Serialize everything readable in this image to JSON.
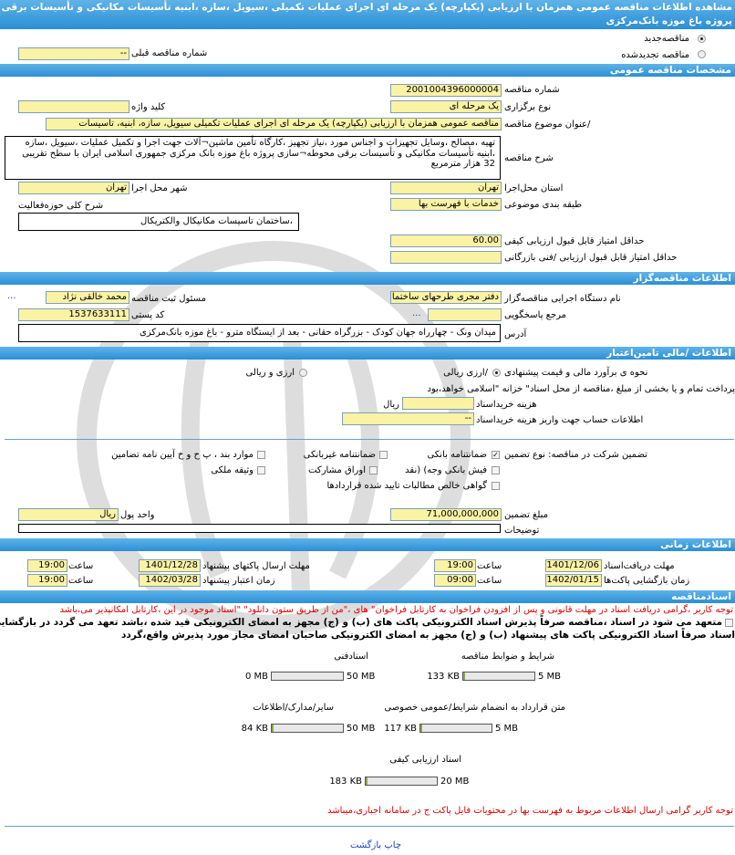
{
  "title": {
    "line1": "مشاهده اطلاعات مناقصه  عمومی  همزمان با ارزیابی  (یکپارچه) یک مرحله ای اجرای عملیات تکمیلی ،سیویل ،سازه ،ابنیه تأسیسات مکانیکی و تأسیسات برقی محوطه¬سازی",
    "line2": "پروژه باغ موزه بانک‌مرکزی"
  },
  "tender_kind": {
    "new_label": "مناقصه‌جدید",
    "new_selected": true,
    "renewed_label": "مناقصه تجدیدشده",
    "renewed_selected": false,
    "prev_number_label": "شماره  مناقصه قبلی",
    "prev_number_value": "--"
  },
  "general": {
    "header": "مشخصات مناقصه عمومی",
    "number_label": "شماره مناقصه",
    "number_value": "2001004396000004",
    "type_label": "نوع برگزاری",
    "type_value": "یک مرحله ای",
    "keyword_label": "کلید واژه",
    "keyword_value": "",
    "subject_label": "/عنوان  موضوع مناقصه",
    "subject_value": "مناقصه عمومی همزمان با ارزیابی (یکپارچه) یک مرحله ای اجرای عملیات تکمیلی سیویل، سازه، ابنیه، تأسیسات",
    "description_label": "شرح مناقصه",
    "description_value": "تهیه  ،مصالح ،وسایل تجهیزات و اجناس مورد ،نیاز تجهیز ،کارگاه تأمین  ماشین¬آلات جهت اجرا و تکمیل عملیات ،سیویل ،سازه ،ابنیه تأسیسات مکانیکی و تأسیسات برقی  محوطه¬سازی پروژه باغ موزه بانک مرکزی  جمهوری اسلامی ایران با سطح  تقریبی 32 هزار  مترمربع",
    "province_label": "استان محل‌اجرا",
    "province_value": "تهران",
    "city_label": "شهر محل اجرا",
    "city_value": "تهران",
    "category_label": "طبقه بندی موضوعی",
    "category_value": "خدمات با فهرست بها",
    "activity_label": "شرح  کلی  حوزه‌فعالیت",
    "activity_value": "،ساختمان  تاسیسات  مکانیکال والکتریکال",
    "min_quality_label": "حداقل  امتیاز قابل قبول  ارزیابی کیفی",
    "min_quality_value": "60.00",
    "min_commercial_label": "حداقل  امتیاز قابل قبول  ارزیابی /فنی بازرگانی",
    "min_commercial_value": ""
  },
  "organizer": {
    "header": "اطلاعات مناقصه‌گزار",
    "org_label": "نام دستگاه اجرایی  مناقصه‌گزار",
    "org_value": "دفتر مجری طرحهای ساختمانی",
    "responsible_label": "مسئول ثبت مناقصه",
    "responsible_value": "محمد خالقی نژاد",
    "more": "...",
    "referee_label": "مرجع پاسخگویی",
    "referee_value": "",
    "postal_label": "کد  پستی",
    "postal_value": "1537633111",
    "address_label": "آدرس",
    "address_value": "میدان ونک - چهارراه جهان کودک - بزرگراه حقانی - بعد از ایستگاه مترو - باغ موزه بانک‌مرکزی"
  },
  "finance": {
    "header": "اطلاعات /مالی تامین‌اعتبار",
    "estimate_label": "نحوه ی برآورد مالی و قیمت پیشنهادی",
    "opt_rial": "/ارزی ریالی",
    "opt_rial_selected": true,
    "opt_fx": "ارزی و ریالی",
    "opt_fx_selected": false,
    "treasury_note": "پرداخت تمام و یا بخشی از مبلغ ،مناقصه از محل اسناد\" خزانه \"اسلامی خواهد،بود",
    "doc_cost_label": "هزینه خریداسناد",
    "doc_cost_value": "",
    "doc_cost_unit": "ریال",
    "account_label": "اطلاعات حساب جهت واریز هزینه خریداسناد",
    "account_value": "--",
    "guarantee_label": "تضمین شرکت در مناقصه:   نوع    تضمین",
    "guarantees": [
      {
        "label": "ضمانتنامه  بانکی",
        "checked": true
      },
      {
        "label": "ضمانتنامه  غیربانکی",
        "checked": false
      },
      {
        "label": "موارد  بند ، پ ح و خ آیین نامه تضامین",
        "checked": false
      },
      {
        "label": "فیش  بانکی وجه) (نقد",
        "checked": false
      },
      {
        "label": "اوراق  مشارکت",
        "checked": false
      },
      {
        "label": "وثیقه ملکی",
        "checked": false
      },
      {
        "label": "گواهی  خالص مطالبات تایید شده قراردادها",
        "checked": false
      }
    ],
    "amount_label": "مبلغ تضمین",
    "amount_value": "71,000,000,000",
    "currency_label": "واحد پول",
    "currency_value": "ریال",
    "notes_label": "توضیحات",
    "notes_value": ""
  },
  "timing": {
    "header": "اطلاعات زمانی",
    "receive_label": "مهلت  دریافت‌اسناد",
    "receive_date": "1401/12/06",
    "receive_time": "19:00",
    "submit_label": "مهلت     ارسال  پاکتهای پیشنهاد",
    "submit_date": "1401/12/28",
    "submit_time": "19:00",
    "open_label": "زمان  بازگشایی پاکت‌ها",
    "open_date": "1402/01/15",
    "open_time": "09:00",
    "validity_label": "زمان      اعتبار پیشنهاد",
    "validity_date": "1402/03/28",
    "validity_time": "19:00",
    "time_label": "ساعت"
  },
  "documents": {
    "header": "اسنادمناقصه",
    "notice": "توجه کاربر ،گرامی دریافت اسناد در مهلت قانونی و پس از افزودن فراخوان به کارتابل فراخوان\" های ،\"من از طریق ستون دانلود\" \"اسناد موجود در این ،کارتابل امکانپذیر می،باشد",
    "commit_line1": "متعهد می شود در اسناد ،مناقصه صرفاً پذیرش اسناد الکترونیکی پاکت های (ب) و (ج) مجهز به امضای الکترونیکی قید شده ،باشد تعهد می گردد در بازگشایی وپذیرش",
    "commit_line2": "اسناد صرفاً اسناد الکترونیکی پاکت های پیشنهاد (ب) و (ج) مجهز به امضای الکترونیکی صاحبان امضای مجاز مورد پذیرش واقع،گردد",
    "files": [
      {
        "label": "شرایط و  ضوابط مناقصه",
        "size": "133 KB",
        "max": "5 MB",
        "fill": 0.026
      },
      {
        "label": "اسنادفنی",
        "size": "0 MB",
        "max": "50 MB",
        "fill": 0
      },
      {
        "label": "متن قرارداد به  انضمام شرایط/عمومی  خصوصی",
        "size": "117 KB",
        "max": "5 MB",
        "fill": 0.023
      },
      {
        "label": "سایر/مدارک/اطلاعات",
        "size": "84 KB",
        "max": "50 MB",
        "fill": 0.002
      },
      {
        "label": "اسناد  ارزیابی کیفی",
        "size": "183 KB",
        "max": "20 MB",
        "fill": 0.009
      }
    ],
    "notice2": "توجه کاربر گرامی ارسال اطلاعات مربوط به فهرست بها در محتویات فایل پاکت ج در سامانه  اجباری،میباشد"
  },
  "footer": {
    "print": "چاپ",
    "back": "بازگشت"
  },
  "colors": {
    "header": "#2b8fd6",
    "input": "#fbf3a4",
    "alert": "#e00000",
    "link": "#1a3fbf"
  }
}
